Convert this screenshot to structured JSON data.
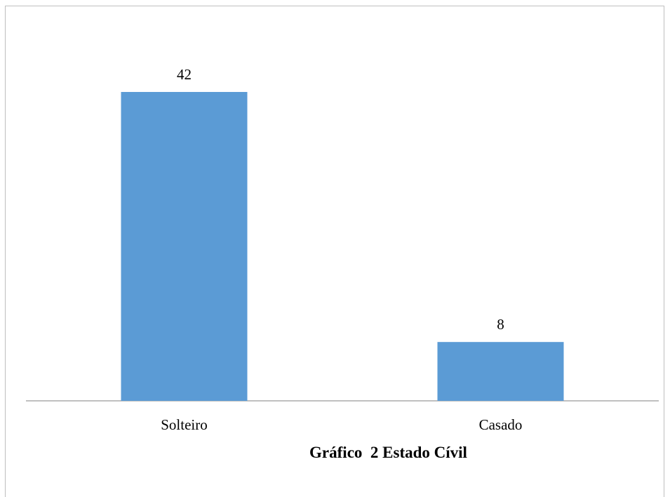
{
  "chart_data": {
    "type": "bar",
    "categories": [
      "Solteiro",
      "Casado"
    ],
    "values": [
      42,
      8
    ],
    "data_labels": [
      "42",
      "8"
    ],
    "bar_color": "#5b9bd5",
    "ylim": [
      0,
      42
    ],
    "grid": false,
    "legend": "none",
    "caption": "Gráfico  2 Estado Cívil"
  }
}
